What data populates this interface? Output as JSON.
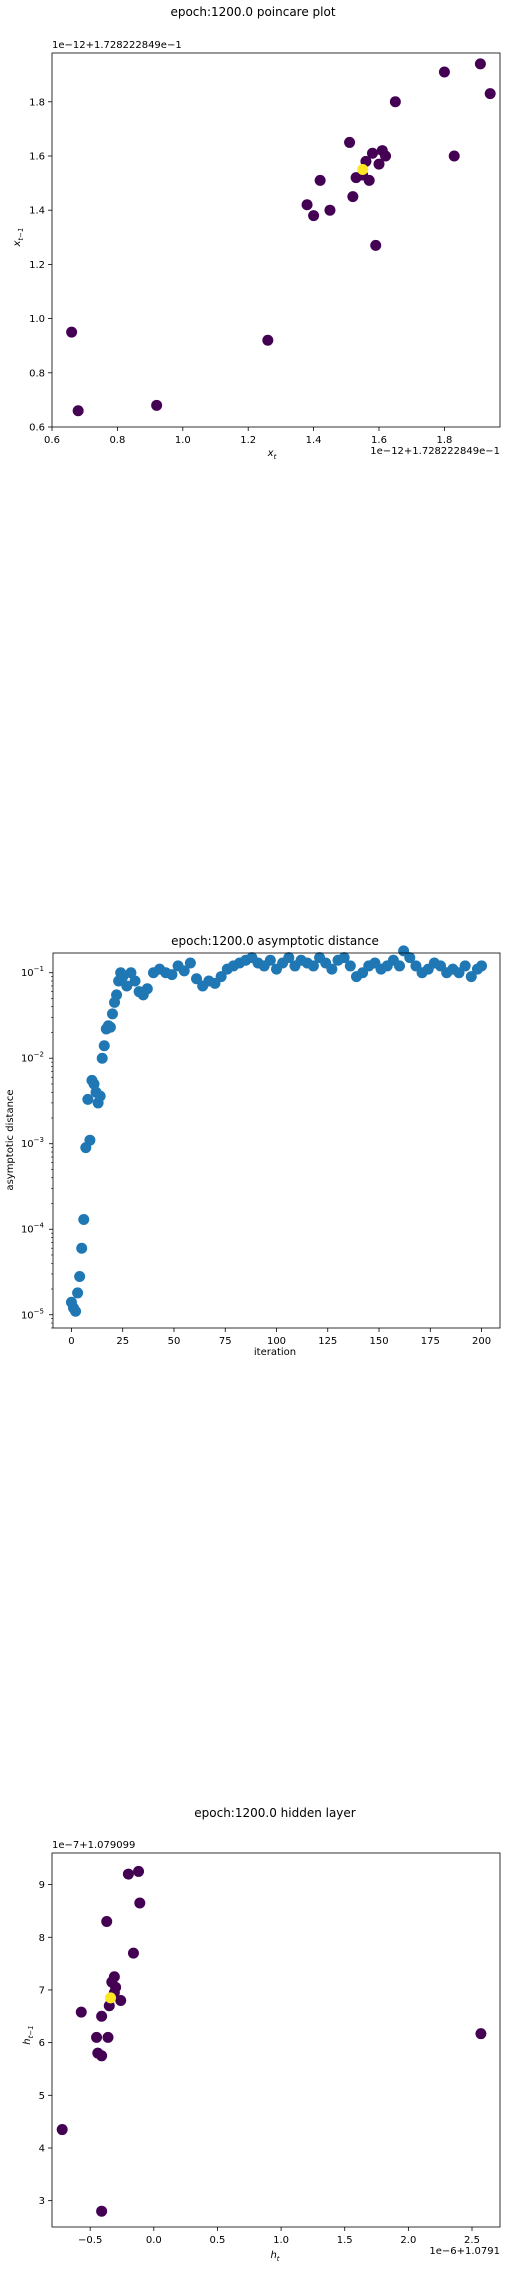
{
  "chart_data": [
    {
      "type": "scatter",
      "title": "epoch:1200.0 poincare plot",
      "xlabel": "x_t",
      "ylabel": "x_{t−1}",
      "x_offset_text": "1e−12+1.728222849e−1",
      "y_offset_text": "1e−12+1.728222849e−1",
      "xlim": [
        0.6,
        1.97
      ],
      "ylim": [
        0.6,
        1.98
      ],
      "xticks": [
        0.6,
        0.8,
        1.0,
        1.2,
        1.4,
        1.6,
        1.8
      ],
      "xtick_labels": [
        "0.6",
        "0.8",
        "1.0",
        "1.2",
        "1.4",
        "1.6",
        "1.8"
      ],
      "yticks": [
        0.6,
        0.8,
        1.0,
        1.2,
        1.4,
        1.6,
        1.8
      ],
      "ytick_labels": [
        "0.6",
        "0.8",
        "1.0",
        "1.2",
        "1.4",
        "1.6",
        "1.8"
      ],
      "colors": {
        "default": "#440154",
        "highlight": "#fde725"
      },
      "points": [
        {
          "x": 0.66,
          "y": 0.95
        },
        {
          "x": 0.68,
          "y": 0.66
        },
        {
          "x": 0.92,
          "y": 0.68
        },
        {
          "x": 1.26,
          "y": 0.92
        },
        {
          "x": 1.38,
          "y": 1.42
        },
        {
          "x": 1.4,
          "y": 1.38
        },
        {
          "x": 1.42,
          "y": 1.51
        },
        {
          "x": 1.45,
          "y": 1.4
        },
        {
          "x": 1.51,
          "y": 1.65
        },
        {
          "x": 1.52,
          "y": 1.45
        },
        {
          "x": 1.53,
          "y": 1.52
        },
        {
          "x": 1.55,
          "y": 1.53
        },
        {
          "x": 1.56,
          "y": 1.58
        },
        {
          "x": 1.57,
          "y": 1.51
        },
        {
          "x": 1.58,
          "y": 1.61
        },
        {
          "x": 1.59,
          "y": 1.27
        },
        {
          "x": 1.6,
          "y": 1.57
        },
        {
          "x": 1.61,
          "y": 1.62
        },
        {
          "x": 1.62,
          "y": 1.6
        },
        {
          "x": 1.65,
          "y": 1.8
        },
        {
          "x": 1.8,
          "y": 1.91
        },
        {
          "x": 1.83,
          "y": 1.6
        },
        {
          "x": 1.91,
          "y": 1.94
        },
        {
          "x": 1.94,
          "y": 1.83
        },
        {
          "x": 1.55,
          "y": 1.55,
          "highlight": true
        }
      ]
    },
    {
      "type": "scatter",
      "title": "epoch:1200.0 asymptotic distance",
      "xlabel": "iteration",
      "ylabel": "asymptotic distance",
      "yscale": "log",
      "xlim": [
        -9,
        209
      ],
      "ylim": [
        7e-06,
        0.17
      ],
      "xticks": [
        0,
        25,
        50,
        75,
        100,
        125,
        150,
        175,
        200
      ],
      "xtick_labels": [
        "0",
        "25",
        "50",
        "75",
        "100",
        "125",
        "150",
        "175",
        "200"
      ],
      "yticks": [
        1e-05,
        0.0001,
        0.001,
        0.01,
        0.1
      ],
      "ytick_mantissa": "10",
      "ytick_exponents": [
        "−5",
        "−4",
        "−3",
        "−2",
        "−1"
      ],
      "color": "#1f77b4",
      "points": [
        {
          "x": 0,
          "y": 1.4e-05
        },
        {
          "x": 1,
          "y": 1.2e-05
        },
        {
          "x": 2,
          "y": 1.1e-05
        },
        {
          "x": 3,
          "y": 1.8e-05
        },
        {
          "x": 4,
          "y": 2.8e-05
        },
        {
          "x": 5,
          "y": 6e-05
        },
        {
          "x": 6,
          "y": 0.00013
        },
        {
          "x": 7,
          "y": 0.0009
        },
        {
          "x": 8,
          "y": 0.0033
        },
        {
          "x": 9,
          "y": 0.0011
        },
        {
          "x": 10,
          "y": 0.0055
        },
        {
          "x": 11,
          "y": 0.005
        },
        {
          "x": 12,
          "y": 0.004
        },
        {
          "x": 13,
          "y": 0.003
        },
        {
          "x": 14,
          "y": 0.0036
        },
        {
          "x": 15,
          "y": 0.01
        },
        {
          "x": 16,
          "y": 0.014
        },
        {
          "x": 17,
          "y": 0.022
        },
        {
          "x": 18,
          "y": 0.024
        },
        {
          "x": 19,
          "y": 0.023
        },
        {
          "x": 20,
          "y": 0.033
        },
        {
          "x": 21,
          "y": 0.045
        },
        {
          "x": 22,
          "y": 0.055
        },
        {
          "x": 23,
          "y": 0.08
        },
        {
          "x": 24,
          "y": 0.1
        },
        {
          "x": 25,
          "y": 0.09
        },
        {
          "x": 27,
          "y": 0.07
        },
        {
          "x": 29,
          "y": 0.1
        },
        {
          "x": 31,
          "y": 0.08
        },
        {
          "x": 33,
          "y": 0.06
        },
        {
          "x": 35,
          "y": 0.055
        },
        {
          "x": 37,
          "y": 0.065
        },
        {
          "x": 40,
          "y": 0.1
        },
        {
          "x": 43,
          "y": 0.11
        },
        {
          "x": 46,
          "y": 0.1
        },
        {
          "x": 49,
          "y": 0.095
        },
        {
          "x": 52,
          "y": 0.12
        },
        {
          "x": 55,
          "y": 0.105
        },
        {
          "x": 58,
          "y": 0.13
        },
        {
          "x": 61,
          "y": 0.085
        },
        {
          "x": 64,
          "y": 0.07
        },
        {
          "x": 67,
          "y": 0.08
        },
        {
          "x": 70,
          "y": 0.075
        },
        {
          "x": 73,
          "y": 0.09
        },
        {
          "x": 76,
          "y": 0.11
        },
        {
          "x": 79,
          "y": 0.12
        },
        {
          "x": 82,
          "y": 0.13
        },
        {
          "x": 85,
          "y": 0.14
        },
        {
          "x": 88,
          "y": 0.15
        },
        {
          "x": 91,
          "y": 0.13
        },
        {
          "x": 94,
          "y": 0.12
        },
        {
          "x": 97,
          "y": 0.14
        },
        {
          "x": 100,
          "y": 0.11
        },
        {
          "x": 103,
          "y": 0.13
        },
        {
          "x": 106,
          "y": 0.15
        },
        {
          "x": 109,
          "y": 0.12
        },
        {
          "x": 112,
          "y": 0.14
        },
        {
          "x": 115,
          "y": 0.13
        },
        {
          "x": 118,
          "y": 0.12
        },
        {
          "x": 121,
          "y": 0.15
        },
        {
          "x": 124,
          "y": 0.13
        },
        {
          "x": 127,
          "y": 0.11
        },
        {
          "x": 130,
          "y": 0.14
        },
        {
          "x": 133,
          "y": 0.15
        },
        {
          "x": 136,
          "y": 0.12
        },
        {
          "x": 139,
          "y": 0.09
        },
        {
          "x": 142,
          "y": 0.1
        },
        {
          "x": 145,
          "y": 0.12
        },
        {
          "x": 148,
          "y": 0.13
        },
        {
          "x": 151,
          "y": 0.11
        },
        {
          "x": 154,
          "y": 0.12
        },
        {
          "x": 157,
          "y": 0.14
        },
        {
          "x": 160,
          "y": 0.12
        },
        {
          "x": 162,
          "y": 0.18
        },
        {
          "x": 165,
          "y": 0.15
        },
        {
          "x": 168,
          "y": 0.12
        },
        {
          "x": 171,
          "y": 0.1
        },
        {
          "x": 174,
          "y": 0.11
        },
        {
          "x": 177,
          "y": 0.13
        },
        {
          "x": 180,
          "y": 0.12
        },
        {
          "x": 183,
          "y": 0.1
        },
        {
          "x": 186,
          "y": 0.11
        },
        {
          "x": 189,
          "y": 0.1
        },
        {
          "x": 192,
          "y": 0.12
        },
        {
          "x": 195,
          "y": 0.09
        },
        {
          "x": 198,
          "y": 0.11
        },
        {
          "x": 200,
          "y": 0.12
        }
      ]
    },
    {
      "type": "scatter",
      "title": "epoch:1200.0 hidden layer",
      "xlabel": "h_t",
      "ylabel": "h_{t−1}",
      "x_offset_text": "1e−6+1.0791",
      "y_offset_text": "1e−7+1.079099",
      "xlim": [
        -0.8,
        2.72
      ],
      "ylim": [
        2.5,
        9.6
      ],
      "xticks": [
        -0.5,
        0.0,
        0.5,
        1.0,
        1.5,
        2.0,
        2.5
      ],
      "xtick_labels": [
        "−0.5",
        "0.0",
        "0.5",
        "1.0",
        "1.5",
        "2.0",
        "2.5"
      ],
      "yticks": [
        3,
        4,
        5,
        6,
        7,
        8,
        9
      ],
      "ytick_labels": [
        "3",
        "4",
        "5",
        "6",
        "7",
        "8",
        "9"
      ],
      "colors": {
        "default": "#440154",
        "highlight": "#fde725"
      },
      "points": [
        {
          "x": -0.72,
          "y": 4.35
        },
        {
          "x": -0.57,
          "y": 6.58
        },
        {
          "x": -0.45,
          "y": 6.1
        },
        {
          "x": -0.44,
          "y": 5.8
        },
        {
          "x": -0.41,
          "y": 5.75
        },
        {
          "x": -0.41,
          "y": 6.5
        },
        {
          "x": -0.41,
          "y": 2.8
        },
        {
          "x": -0.37,
          "y": 8.3
        },
        {
          "x": -0.36,
          "y": 6.1
        },
        {
          "x": -0.35,
          "y": 6.7
        },
        {
          "x": -0.33,
          "y": 7.15
        },
        {
          "x": -0.31,
          "y": 7.25
        },
        {
          "x": -0.31,
          "y": 6.95
        },
        {
          "x": -0.3,
          "y": 7.05
        },
        {
          "x": -0.26,
          "y": 6.8
        },
        {
          "x": -0.2,
          "y": 9.2
        },
        {
          "x": -0.16,
          "y": 7.7
        },
        {
          "x": -0.12,
          "y": 9.25
        },
        {
          "x": -0.11,
          "y": 8.65
        },
        {
          "x": 2.57,
          "y": 6.17
        },
        {
          "x": -0.34,
          "y": 6.85,
          "highlight": true
        }
      ]
    }
  ]
}
